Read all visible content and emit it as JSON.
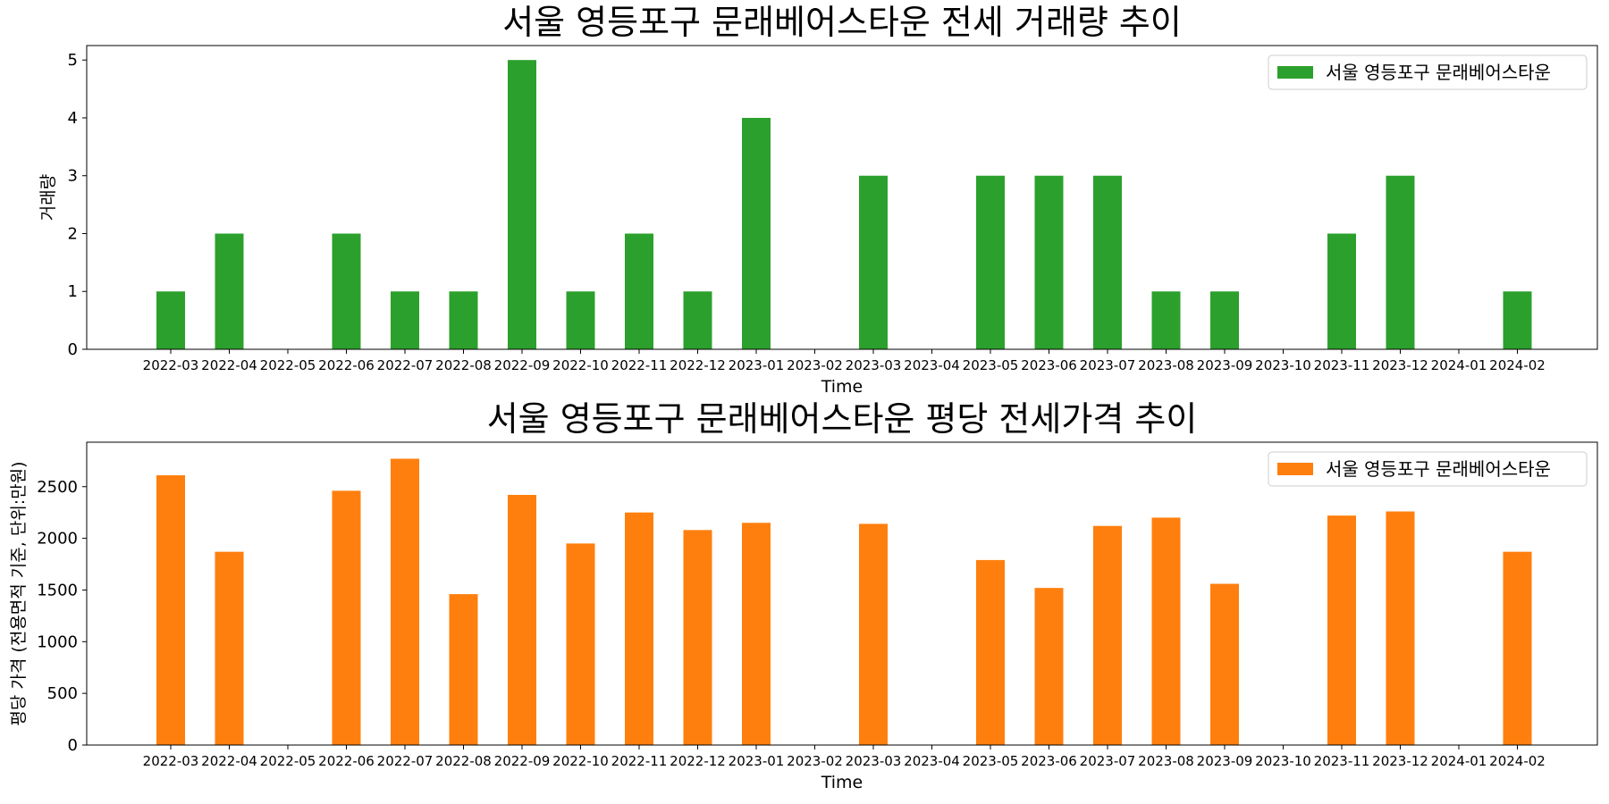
{
  "chart_data": [
    {
      "type": "bar",
      "title": "서울 영등포구 문래베어스타운 전세 거래량 추이",
      "xlabel": "Time",
      "ylabel": "거래량",
      "ylim": [
        0,
        5.25
      ],
      "yticks": [
        0,
        1,
        2,
        3,
        4,
        5
      ],
      "legend_position": "top-right",
      "grid": false,
      "color": "#2ca02c",
      "categories": [
        "2022-03",
        "2022-04",
        "2022-05",
        "2022-06",
        "2022-07",
        "2022-08",
        "2022-09",
        "2022-10",
        "2022-11",
        "2022-12",
        "2023-01",
        "2023-02",
        "2023-03",
        "2023-04",
        "2023-05",
        "2023-06",
        "2023-07",
        "2023-08",
        "2023-09",
        "2023-10",
        "2023-11",
        "2023-12",
        "2024-01",
        "2024-02"
      ],
      "series": [
        {
          "name": "서울 영등포구 문래베어스타운",
          "values": [
            1,
            2,
            0,
            2,
            1,
            1,
            5,
            1,
            2,
            1,
            4,
            0,
            3,
            0,
            3,
            3,
            3,
            1,
            1,
            0,
            2,
            3,
            0,
            1
          ]
        }
      ]
    },
    {
      "type": "bar",
      "title": "서울 영등포구 문래베어스타운 평당 전세가격 추이",
      "xlabel": "Time",
      "ylabel": "평당 가격 (전용면적 기준, 단위:만원)",
      "ylim": [
        0,
        2930
      ],
      "yticks": [
        0,
        500,
        1000,
        1500,
        2000,
        2500
      ],
      "legend_position": "top-right",
      "grid": false,
      "color": "#ff7f0e",
      "categories": [
        "2022-03",
        "2022-04",
        "2022-05",
        "2022-06",
        "2022-07",
        "2022-08",
        "2022-09",
        "2022-10",
        "2022-11",
        "2022-12",
        "2023-01",
        "2023-02",
        "2023-03",
        "2023-04",
        "2023-05",
        "2023-06",
        "2023-07",
        "2023-08",
        "2023-09",
        "2023-10",
        "2023-11",
        "2023-12",
        "2024-01",
        "2024-02"
      ],
      "series": [
        {
          "name": "서울 영등포구 문래베어스타운",
          "values": [
            2610,
            1870,
            0,
            2460,
            2770,
            1460,
            2420,
            1950,
            2250,
            2080,
            2150,
            0,
            2140,
            0,
            1790,
            1520,
            2120,
            2200,
            1560,
            0,
            2220,
            2260,
            0,
            1870
          ]
        }
      ]
    }
  ]
}
